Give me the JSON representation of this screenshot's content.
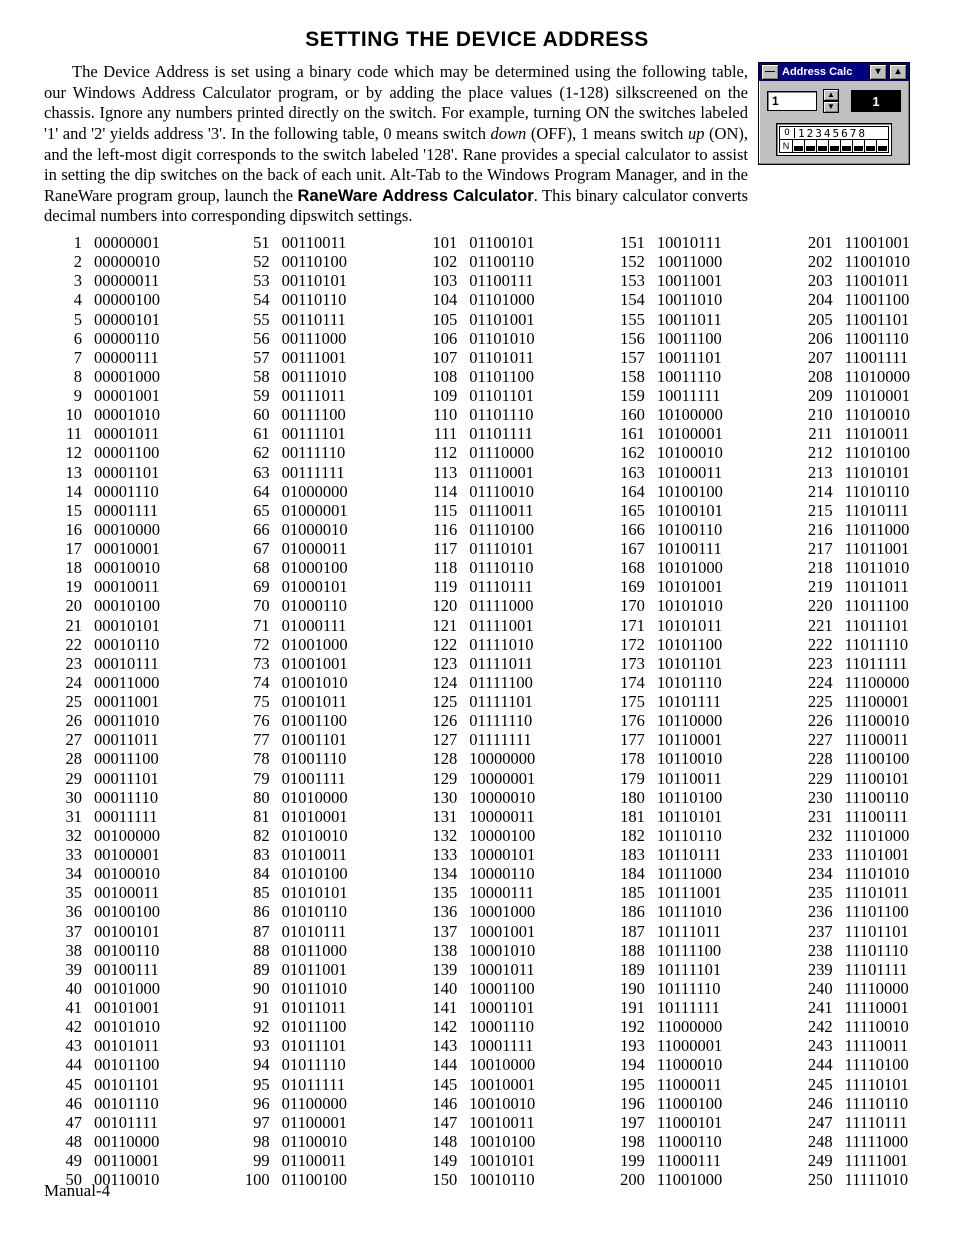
{
  "title": "SETTING THE DEVICE ADDRESS",
  "body_parts": {
    "p1a": "The Device Address is set using a binary code which may be determined using the following table, our Windows Address Calculator program, or by adding the place values (1-128) silkscreened on the chassis. Ignore any numbers printed directly on the switch. For example, turning ON  the switches labeled '1' and '2' yields address '3'. In the following table, 0 means switch ",
    "p1_down": "down",
    "p1b": " (OFF), 1 means switch ",
    "p1_up": "up",
    "p1c": " (ON), and the left-most digit corresponds to the switch labeled '128'. Rane provides a special calculator to assist in setting the dip switches on the back of each unit. Alt-Tab to the Windows Program Manager, and in the RaneWare program group, launch the ",
    "p1_bold": "RaneWare Address Calculator",
    "p1d": ". This binary calculator converts decimal numbers into corresponding dipswitch settings."
  },
  "calc": {
    "title": "Address Calc",
    "value": "1",
    "output": "1",
    "dip_labels": "12345678",
    "ind_up": "O",
    "ind_dn": "N"
  },
  "table": {
    "start": 1,
    "end": 250,
    "cols": 5
  },
  "footer": "Manual-4"
}
